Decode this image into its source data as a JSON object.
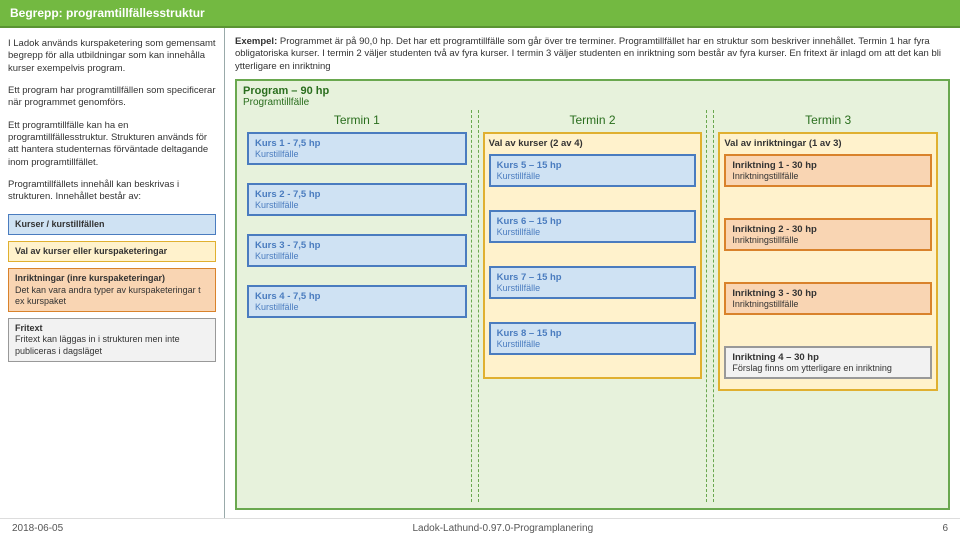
{
  "colors": {
    "blue_border": "#4a7cbf",
    "blue_bg": "#cfe2f3",
    "green_border": "#6aa84f",
    "green_bg": "#e7f2dc",
    "yellow_border": "#e0b030",
    "yellow_bg": "#fff2cc",
    "orange_border": "#d9822b",
    "orange_bg": "#f9d5b3",
    "gray_border": "#999999",
    "gray_bg": "#f2f2f2"
  },
  "header": {
    "title": "Begrepp: programtillfällesstruktur"
  },
  "left": {
    "p1": "I Ladok används kurspaketering som gemensamt begrepp för alla utbildningar som kan innehålla kurser exempelvis program.",
    "p2": "Ett program har programtillfällen som specificerar när programmet genomförs.",
    "p3": "Ett programtillfälle kan ha en programtillfällesstruktur. Strukturen används för att hantera studenternas förväntade deltagande inom programtillfället.",
    "p4": "Programtillfällets innehåll kan beskrivas i strukturen. Innehållet består av:",
    "tags": [
      {
        "title": "Kurser / kurstillfällen",
        "body": "",
        "color": "blue"
      },
      {
        "title": "Val av kurser eller kurspaketeringar",
        "body": "",
        "color": "yellow"
      },
      {
        "title": "Inriktningar (inre kurspaketeringar)",
        "body": "Det kan vara andra typer av kurspaketeringar t ex kurspaket",
        "color": "orange"
      },
      {
        "title": "Fritext",
        "body": "Fritext kan läggas in i strukturen men inte publiceras i dagsläget",
        "color": "gray"
      }
    ]
  },
  "right": {
    "example_label": "Exempel:",
    "example": "Programmet är på 90,0 hp. Det har ett programtillfälle som går över tre terminer. Programtillfället har en struktur som beskriver innehållet. Termin 1 har fyra obligatoriska kurser. I termin 2 väljer studenten två av fyra kurser. I termin 3 väljer studenten en inriktning som består av fyra kurser. En fritext är inlagd om att det kan bli ytterligare en inriktning",
    "program_title": "Program – 90 hp",
    "program_sub": "Programtillfälle",
    "terms": [
      "Termin 1",
      "Termin 2",
      "Termin 3"
    ],
    "t1": [
      {
        "t": "Kurs 1 - 7,5 hp",
        "s": "Kurstillfälle"
      },
      {
        "t": "Kurs 2 - 7,5 hp",
        "s": "Kurstillfälle"
      },
      {
        "t": "Kurs 3 - 7,5 hp",
        "s": "Kurstillfälle"
      },
      {
        "t": "Kurs 4 - 7,5 hp",
        "s": "Kurstillfälle"
      }
    ],
    "t2": {
      "title": "Val av kurser (2 av 4)",
      "items": [
        {
          "t": "Kurs 5 – 15 hp",
          "s": "Kurstillfälle"
        },
        {
          "t": "Kurs 6 – 15 hp",
          "s": "Kurstillfälle"
        },
        {
          "t": "Kurs 7 – 15 hp",
          "s": "Kurstillfälle"
        },
        {
          "t": "Kurs 8 – 15 hp",
          "s": "Kurstillfälle"
        }
      ]
    },
    "t3": {
      "title": "Val av inriktningar (1 av 3)",
      "items": [
        {
          "t": "Inriktning 1 - 30 hp",
          "s": "Inriktningstillfälle"
        },
        {
          "t": "Inriktning 2 - 30 hp",
          "s": "Inriktningstillfälle"
        },
        {
          "t": "Inriktning 3 - 30 hp",
          "s": "Inriktningstillfälle"
        }
      ],
      "extra": {
        "t": "Inriktning 4 – 30 hp",
        "s": "Förslag finns om ytterligare en inriktning"
      }
    }
  },
  "footer": {
    "date": "2018-06-05",
    "center": "Ladok-Lathund-0.97.0-Programplanering",
    "page": "6"
  }
}
